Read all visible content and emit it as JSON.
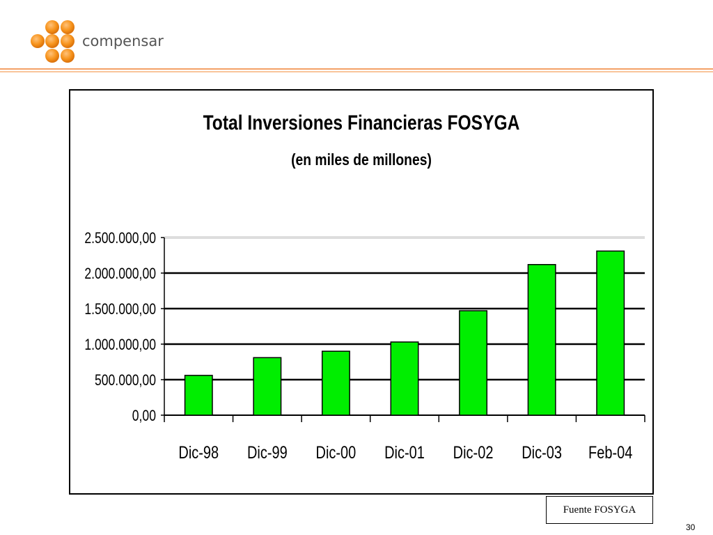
{
  "brand": {
    "name": "compensar",
    "logo_color": "#f7941d"
  },
  "chart_data": {
    "type": "bar",
    "title": "Total Inversiones Financieras FOSYGA",
    "subtitle": "(en miles de millones)",
    "categories": [
      "Dic-98",
      "Dic-99",
      "Dic-00",
      "Dic-01",
      "Dic-02",
      "Dic-03",
      "Feb-04"
    ],
    "values": [
      560000,
      810000,
      900000,
      1030000,
      1470000,
      2120000,
      2310000
    ],
    "ylim": [
      0,
      2500000
    ],
    "yticks": [
      0,
      500000,
      1000000,
      1500000,
      2000000,
      2500000
    ],
    "ytick_labels": [
      "0,00",
      "500.000,00",
      "1.000.000,00",
      "1.500.000,00",
      "2.000.000,00",
      "2.500.000,00"
    ],
    "bar_color": "#00ee00",
    "grid": true,
    "legend": false
  },
  "source_note": "Fuente FOSYGA",
  "page_number": "30"
}
